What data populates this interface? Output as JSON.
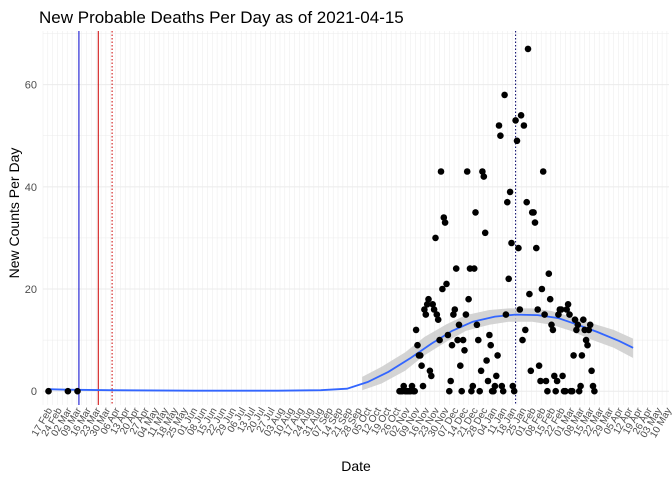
{
  "chart_data": {
    "type": "scatter",
    "title": "New Probable Deaths Per Day as of 2021-04-15",
    "xlabel": "Date",
    "ylabel": "New Counts Per Day",
    "xlim": [
      "2020-02-13",
      "2021-05-11"
    ],
    "ylim": [
      -2.7,
      70.5
    ],
    "y_ticks": [
      0,
      20,
      40,
      60
    ],
    "x_ticks": [
      {
        "date": "2020-02-17",
        "label": "17 Feb"
      },
      {
        "date": "2020-02-24",
        "label": "24 Feb"
      },
      {
        "date": "2020-03-02",
        "label": "02 Mar"
      },
      {
        "date": "2020-03-09",
        "label": "09 Mar"
      },
      {
        "date": "2020-03-16",
        "label": "16 Mar"
      },
      {
        "date": "2020-03-23",
        "label": "23 Mar"
      },
      {
        "date": "2020-03-30",
        "label": "30 Mar"
      },
      {
        "date": "2020-04-06",
        "label": "06 Apr"
      },
      {
        "date": "2020-04-13",
        "label": "13 Apr"
      },
      {
        "date": "2020-04-20",
        "label": "20 Apr"
      },
      {
        "date": "2020-04-27",
        "label": "27 Apr"
      },
      {
        "date": "2020-05-04",
        "label": "04 May"
      },
      {
        "date": "2020-05-11",
        "label": "11 May"
      },
      {
        "date": "2020-05-18",
        "label": "18 May"
      },
      {
        "date": "2020-05-25",
        "label": "25 May"
      },
      {
        "date": "2020-06-01",
        "label": "01 Jun"
      },
      {
        "date": "2020-06-08",
        "label": "08 Jun"
      },
      {
        "date": "2020-06-15",
        "label": "15 Jun"
      },
      {
        "date": "2020-06-22",
        "label": "22 Jun"
      },
      {
        "date": "2020-06-29",
        "label": "29 Jun"
      },
      {
        "date": "2020-07-06",
        "label": "06 Jul"
      },
      {
        "date": "2020-07-13",
        "label": "13 Jul"
      },
      {
        "date": "2020-07-20",
        "label": "20 Jul"
      },
      {
        "date": "2020-07-27",
        "label": "27 Jul"
      },
      {
        "date": "2020-08-03",
        "label": "03 Aug"
      },
      {
        "date": "2020-08-10",
        "label": "10 Aug"
      },
      {
        "date": "2020-08-17",
        "label": "17 Aug"
      },
      {
        "date": "2020-08-24",
        "label": "24 Aug"
      },
      {
        "date": "2020-08-31",
        "label": "31 Aug"
      },
      {
        "date": "2020-09-07",
        "label": "07 Sep"
      },
      {
        "date": "2020-09-14",
        "label": "14 Sep"
      },
      {
        "date": "2020-09-21",
        "label": "21 Sep"
      },
      {
        "date": "2020-09-28",
        "label": "28 Sep"
      },
      {
        "date": "2020-10-05",
        "label": "05 Oct"
      },
      {
        "date": "2020-10-12",
        "label": "12 Oct"
      },
      {
        "date": "2020-10-19",
        "label": "19 Oct"
      },
      {
        "date": "2020-10-26",
        "label": "26 Oct"
      },
      {
        "date": "2020-11-02",
        "label": "02 Nov"
      },
      {
        "date": "2020-11-09",
        "label": "09 Nov"
      },
      {
        "date": "2020-11-16",
        "label": "16 Nov"
      },
      {
        "date": "2020-11-23",
        "label": "23 Nov"
      },
      {
        "date": "2020-11-30",
        "label": "30 Nov"
      },
      {
        "date": "2020-12-07",
        "label": "07 Dec"
      },
      {
        "date": "2020-12-14",
        "label": "14 Dec"
      },
      {
        "date": "2020-12-21",
        "label": "21 Dec"
      },
      {
        "date": "2020-12-28",
        "label": "28 Dec"
      },
      {
        "date": "2021-01-04",
        "label": "04 Jan"
      },
      {
        "date": "2021-01-11",
        "label": "11 Jan"
      },
      {
        "date": "2021-01-18",
        "label": "18 Jan"
      },
      {
        "date": "2021-01-25",
        "label": "25 Jan"
      },
      {
        "date": "2021-02-01",
        "label": "01 Feb"
      },
      {
        "date": "2021-02-08",
        "label": "08 Feb"
      },
      {
        "date": "2021-02-15",
        "label": "15 Feb"
      },
      {
        "date": "2021-02-22",
        "label": "22 Feb"
      },
      {
        "date": "2021-03-01",
        "label": "01 Mar"
      },
      {
        "date": "2021-03-08",
        "label": "08 Mar"
      },
      {
        "date": "2021-03-15",
        "label": "15 Mar"
      },
      {
        "date": "2021-03-22",
        "label": "22 Mar"
      },
      {
        "date": "2021-03-29",
        "label": "29 Mar"
      },
      {
        "date": "2021-04-05",
        "label": "05 Apr"
      },
      {
        "date": "2021-04-12",
        "label": "12 Apr"
      },
      {
        "date": "2021-04-19",
        "label": "19 Apr"
      },
      {
        "date": "2021-04-26",
        "label": "26 Apr"
      },
      {
        "date": "2021-05-03",
        "label": "03 May"
      },
      {
        "date": "2021-05-10",
        "label": "10 May"
      }
    ],
    "grid": true,
    "reference_lines": [
      {
        "date": "2020-03-10",
        "color": "#0000cc",
        "style": "solid"
      },
      {
        "date": "2020-03-24",
        "color": "#cc0000",
        "style": "solid"
      },
      {
        "date": "2020-04-03",
        "color": "#cc0000",
        "style": "dotted"
      },
      {
        "date": "2021-01-20",
        "color": "#000066",
        "style": "dotted"
      }
    ],
    "point_color": "#000000",
    "smooth": {
      "color": "#3366ff",
      "band_color": "#cccccc",
      "x": [
        "2020-02-17",
        "2020-03-01",
        "2020-04-01",
        "2020-06-01",
        "2020-08-01",
        "2020-09-01",
        "2020-09-20",
        "2020-10-05",
        "2020-10-20",
        "2020-11-05",
        "2020-11-20",
        "2020-12-05",
        "2020-12-20",
        "2021-01-05",
        "2021-01-20",
        "2021-02-05",
        "2021-02-20",
        "2021-03-05",
        "2021-03-20",
        "2021-04-05",
        "2021-04-15"
      ],
      "y": [
        0.4,
        0.3,
        0.2,
        0.1,
        0.1,
        0.2,
        0.5,
        1.8,
        3.8,
        6.5,
        9.3,
        11.8,
        13.6,
        14.6,
        15.0,
        14.9,
        14.3,
        13.1,
        11.6,
        9.8,
        8.5
      ],
      "band_x": [
        "2020-10-01",
        "2020-10-15",
        "2020-11-01",
        "2020-11-15",
        "2020-12-01",
        "2020-12-15",
        "2021-01-01",
        "2021-01-15",
        "2021-02-01",
        "2021-02-15",
        "2021-03-01",
        "2021-03-15",
        "2021-04-01",
        "2021-04-15"
      ],
      "band_low": [
        0.2,
        1.5,
        4.0,
        7.0,
        9.7,
        11.8,
        13.0,
        13.6,
        13.6,
        13.0,
        11.8,
        10.2,
        8.5,
        6.5
      ],
      "band_high": [
        2.8,
        4.8,
        7.6,
        10.6,
        13.1,
        14.9,
        15.9,
        16.2,
        16.2,
        15.7,
        14.6,
        13.4,
        12.0,
        10.3
      ]
    },
    "points": [
      [
        "2020-02-17",
        0
      ],
      [
        "2020-03-02",
        0
      ],
      [
        "2020-03-09",
        0
      ],
      [
        "2020-10-28",
        0
      ],
      [
        "2020-10-29",
        0
      ],
      [
        "2020-10-30",
        0
      ],
      [
        "2020-10-31",
        1
      ],
      [
        "2020-11-01",
        0
      ],
      [
        "2020-11-02",
        0
      ],
      [
        "2020-11-03",
        0
      ],
      [
        "2020-11-04",
        0
      ],
      [
        "2020-11-05",
        0
      ],
      [
        "2020-11-06",
        1
      ],
      [
        "2020-11-07",
        0
      ],
      [
        "2020-11-08",
        0
      ],
      [
        "2020-11-09",
        12
      ],
      [
        "2020-11-10",
        9
      ],
      [
        "2020-11-11",
        7
      ],
      [
        "2020-11-12",
        7
      ],
      [
        "2020-11-13",
        5
      ],
      [
        "2020-11-14",
        1
      ],
      [
        "2020-11-15",
        16
      ],
      [
        "2020-11-16",
        15
      ],
      [
        "2020-11-17",
        17
      ],
      [
        "2020-11-18",
        18
      ],
      [
        "2020-11-19",
        4
      ],
      [
        "2020-11-20",
        3
      ],
      [
        "2020-11-21",
        17
      ],
      [
        "2020-11-22",
        16
      ],
      [
        "2020-11-23",
        30
      ],
      [
        "2020-11-24",
        15
      ],
      [
        "2020-11-25",
        14
      ],
      [
        "2020-11-26",
        10
      ],
      [
        "2020-11-27",
        43
      ],
      [
        "2020-11-28",
        20
      ],
      [
        "2020-11-29",
        34
      ],
      [
        "2020-11-30",
        33
      ],
      [
        "2020-12-01",
        21
      ],
      [
        "2020-12-02",
        11
      ],
      [
        "2020-12-03",
        0
      ],
      [
        "2020-12-04",
        2
      ],
      [
        "2020-12-05",
        9
      ],
      [
        "2020-12-06",
        15
      ],
      [
        "2020-12-07",
        16
      ],
      [
        "2020-12-08",
        24
      ],
      [
        "2020-12-09",
        10
      ],
      [
        "2020-12-10",
        13
      ],
      [
        "2020-12-11",
        5
      ],
      [
        "2020-12-12",
        0
      ],
      [
        "2020-12-13",
        10
      ],
      [
        "2020-12-14",
        8
      ],
      [
        "2020-12-15",
        15
      ],
      [
        "2020-12-16",
        43
      ],
      [
        "2020-12-17",
        18
      ],
      [
        "2020-12-18",
        24
      ],
      [
        "2020-12-19",
        0
      ],
      [
        "2020-12-20",
        1
      ],
      [
        "2020-12-21",
        24
      ],
      [
        "2020-12-22",
        35
      ],
      [
        "2020-12-23",
        13
      ],
      [
        "2020-12-24",
        10
      ],
      [
        "2020-12-25",
        0
      ],
      [
        "2020-12-26",
        4
      ],
      [
        "2020-12-27",
        43
      ],
      [
        "2020-12-28",
        42
      ],
      [
        "2020-12-29",
        31
      ],
      [
        "2020-12-30",
        6
      ],
      [
        "2020-12-31",
        2
      ],
      [
        "2021-01-01",
        11
      ],
      [
        "2021-01-02",
        9
      ],
      [
        "2021-01-03",
        0
      ],
      [
        "2021-01-04",
        0
      ],
      [
        "2021-01-05",
        1
      ],
      [
        "2021-01-06",
        3
      ],
      [
        "2021-01-07",
        7
      ],
      [
        "2021-01-08",
        52
      ],
      [
        "2021-01-09",
        50
      ],
      [
        "2021-01-10",
        1
      ],
      [
        "2021-01-11",
        0
      ],
      [
        "2021-01-12",
        58
      ],
      [
        "2021-01-13",
        15
      ],
      [
        "2021-01-14",
        37
      ],
      [
        "2021-01-15",
        22
      ],
      [
        "2021-01-16",
        39
      ],
      [
        "2021-01-17",
        29
      ],
      [
        "2021-01-18",
        1
      ],
      [
        "2021-01-19",
        0
      ],
      [
        "2021-01-20",
        53
      ],
      [
        "2021-01-21",
        49
      ],
      [
        "2021-01-22",
        28
      ],
      [
        "2021-01-23",
        16
      ],
      [
        "2021-01-24",
        54
      ],
      [
        "2021-01-25",
        10
      ],
      [
        "2021-01-26",
        52
      ],
      [
        "2021-01-27",
        12
      ],
      [
        "2021-01-28",
        37
      ],
      [
        "2021-01-29",
        67
      ],
      [
        "2021-01-30",
        19
      ],
      [
        "2021-01-31",
        4
      ],
      [
        "2021-02-01",
        35
      ],
      [
        "2021-02-02",
        35
      ],
      [
        "2021-02-03",
        33
      ],
      [
        "2021-02-04",
        28
      ],
      [
        "2021-02-05",
        16
      ],
      [
        "2021-02-06",
        5
      ],
      [
        "2021-02-07",
        2
      ],
      [
        "2021-02-08",
        20
      ],
      [
        "2021-02-09",
        43
      ],
      [
        "2021-02-10",
        15
      ],
      [
        "2021-02-11",
        2
      ],
      [
        "2021-02-12",
        0
      ],
      [
        "2021-02-13",
        23
      ],
      [
        "2021-02-14",
        18
      ],
      [
        "2021-02-15",
        13
      ],
      [
        "2021-02-16",
        12
      ],
      [
        "2021-02-17",
        3
      ],
      [
        "2021-02-18",
        0
      ],
      [
        "2021-02-19",
        2
      ],
      [
        "2021-02-20",
        15
      ],
      [
        "2021-02-21",
        16
      ],
      [
        "2021-02-22",
        16
      ],
      [
        "2021-02-23",
        3
      ],
      [
        "2021-02-24",
        0
      ],
      [
        "2021-02-25",
        0
      ],
      [
        "2021-02-26",
        16
      ],
      [
        "2021-02-27",
        17
      ],
      [
        "2021-02-28",
        15
      ],
      [
        "2021-03-01",
        0
      ],
      [
        "2021-03-02",
        0
      ],
      [
        "2021-03-03",
        7
      ],
      [
        "2021-03-04",
        14
      ],
      [
        "2021-03-05",
        12
      ],
      [
        "2021-03-06",
        13
      ],
      [
        "2021-03-07",
        0
      ],
      [
        "2021-03-08",
        1
      ],
      [
        "2021-03-09",
        7
      ],
      [
        "2021-03-10",
        14
      ],
      [
        "2021-03-11",
        12
      ],
      [
        "2021-03-12",
        10
      ],
      [
        "2021-03-13",
        9
      ],
      [
        "2021-03-14",
        12
      ],
      [
        "2021-03-15",
        13
      ],
      [
        "2021-03-16",
        4
      ],
      [
        "2021-03-17",
        1
      ],
      [
        "2021-03-18",
        0
      ]
    ]
  }
}
